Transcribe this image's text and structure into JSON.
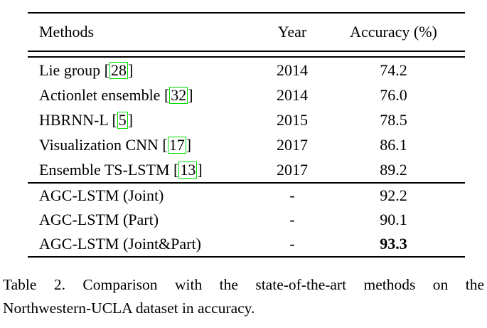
{
  "table": {
    "headers": {
      "method": "Methods",
      "year": "Year",
      "accuracy": "Accuracy (%)"
    },
    "sections": [
      {
        "rows": [
          {
            "method": "Lie group",
            "cite": "28",
            "year": "2014",
            "accuracy": "74.2",
            "bold": false
          },
          {
            "method": "Actionlet ensemble",
            "cite": "32",
            "year": "2014",
            "accuracy": "76.0",
            "bold": false
          },
          {
            "method": "HBRNN-L",
            "cite": "5",
            "year": "2015",
            "accuracy": "78.5",
            "bold": false
          },
          {
            "method": "Visualization CNN",
            "cite": "17",
            "year": "2017",
            "accuracy": "86.1",
            "bold": false
          },
          {
            "method": "Ensemble TS-LSTM",
            "cite": "13",
            "year": "2017",
            "accuracy": "89.2",
            "bold": false
          }
        ]
      },
      {
        "rows": [
          {
            "method": "AGC-LSTM (Joint)",
            "cite": null,
            "year": "-",
            "accuracy": "92.2",
            "bold": false
          },
          {
            "method": "AGC-LSTM (Part)",
            "cite": null,
            "year": "-",
            "accuracy": "90.1",
            "bold": false
          },
          {
            "method": "AGC-LSTM (Joint&Part)",
            "cite": null,
            "year": "-",
            "accuracy": "93.3",
            "bold": true
          }
        ]
      }
    ]
  },
  "caption": {
    "line1": "Table 2. Comparison with the state-of-the-art methods on the",
    "line2": "Northwestern-UCLA dataset in accuracy."
  },
  "colors": {
    "text": "#000000",
    "rule": "#000000",
    "citation_box": "#00DC00",
    "background": "#ffffff"
  }
}
